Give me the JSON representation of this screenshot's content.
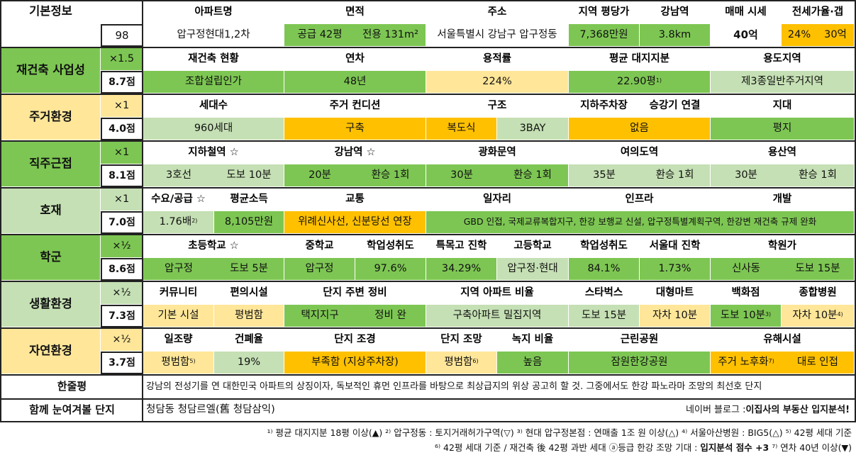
{
  "colors": {
    "green": "#7dc653",
    "light_green": "#c5e0b4",
    "orange": "#ffc000",
    "light_yellow": "#ffe699"
  },
  "basic": {
    "title": "기본정보",
    "total": "98",
    "h_apt": "아파트명",
    "apt": "압구정현대1,2차",
    "h_area": "면적",
    "area_supply": "공급 42평",
    "area_exclusive": "전용 131m²",
    "h_addr": "주소",
    "addr": "서울특별시 강남구 압구정동",
    "h_pyeong": "지역 평당가",
    "pyeong": "7,368만원",
    "h_gangnam": "강남역",
    "gangnam": "3.8km",
    "h_sale": "매매 시세",
    "sale": "40억",
    "h_jeonse": "전세가율·갭",
    "jeonse_rate": "24%",
    "gap": "30억"
  },
  "rebuild": {
    "title": "재건축 사업성",
    "mult": "×1.5",
    "score": "8.7점",
    "h1": "재건축 현황",
    "v1": "조합설립인가",
    "h2": "연차",
    "v2": "48년",
    "h3": "용적률",
    "v3": "224%",
    "h4": "평균 대지지분",
    "v4": "22.90평",
    "v4_sup": "1)",
    "h5": "용도지역",
    "v5": "제3종일반주거지역"
  },
  "living": {
    "title": "주거환경",
    "mult": "×1",
    "score": "4.0점",
    "h1": "세대수",
    "v1": "960세대",
    "h2": "주거 컨디션",
    "v2a": "구축",
    "v2b": "복도식",
    "h3": "구조",
    "v3": "3BAY",
    "h4": "지하주차장",
    "h5": "승강기 연결",
    "v4": "없음",
    "h6": "지대",
    "v6": "평지"
  },
  "commute": {
    "title": "직주근접",
    "mult": "×1",
    "score": "8.1점",
    "h1": "지하철역 ☆",
    "v1a": "3호선",
    "v1b": "도보 10분",
    "h2": "강남역 ☆",
    "v2a": "20분",
    "v2b": "환승 1회",
    "h3": "광화문역",
    "v3a": "30분",
    "v3b": "환승 1회",
    "h4": "여의도역",
    "v4a": "35분",
    "v4b": "환승 1회",
    "h5": "용산역",
    "v5a": "30분",
    "v5b": "환승 1회"
  },
  "hojae": {
    "title": "호재",
    "mult": "×1",
    "score": "7.0점",
    "h1": "수요/공급 ☆",
    "v1": "1.76배",
    "v1_sup": "2)",
    "h2": "평균소득",
    "v2": "8,105만원",
    "h3": "교통",
    "v3": "위례신사선, 신분당선 연장",
    "h4": "일자리",
    "h5": "인프라",
    "h6": "개발",
    "v456": "GBD 인접, 국제교류복합지구, 한강 보행교 신설, 압구정특별계획구역, 한강변 재건축 규제 완화"
  },
  "school": {
    "title": "학군",
    "mult": "×½",
    "score": "8.6점",
    "h1": "초등학교 ☆",
    "v1a": "압구정",
    "v1b": "도보 5분",
    "h2": "중학교",
    "v2": "압구정",
    "h3": "학업성취도",
    "v3": "97.6%",
    "h4": "특목고 진학",
    "v4": "34.29%",
    "h5": "고등학교",
    "v5": "압구정·현대",
    "h6": "학업성취도",
    "v6": "84.1%",
    "h7": "서울대 진학",
    "v7": "1.73%",
    "h8": "학원가",
    "v8a": "신사동",
    "v8b": "도보 15분"
  },
  "life": {
    "title": "생활환경",
    "mult": "×½",
    "score": "7.3점",
    "h1": "커뮤니티",
    "v1": "기본 시설",
    "h2": "편의시설",
    "v2": "평범함",
    "h3": "단지 주변 정비",
    "v3a": "택지지구",
    "v3b": "정비 완",
    "h4": "지역 아파트 비율",
    "v4": "구축아파트 밀집지역",
    "h5": "스타벅스",
    "v5": "도보 15분",
    "h6": "대형마트",
    "v6": "자차 10분",
    "h7": "백화점",
    "v7": "도보 10분",
    "v7_sup": "3)",
    "h8": "종합병원",
    "v8": "자차 10분",
    "v8_sup": "4)"
  },
  "nature": {
    "title": "자연환경",
    "mult": "×½",
    "score": "3.7점",
    "h1": "일조량",
    "v1": "평범함",
    "v1_sup": "5)",
    "h2": "건폐율",
    "v2": "19%",
    "h3": "단지 조경",
    "v3": "부족함 (지상주차장)",
    "h4": "단지 조망",
    "v4": "평범함",
    "v4_sup": "6)",
    "h5": "녹지 비율",
    "v5": "높음",
    "h6": "근린공원",
    "v6": "잠원한강공원",
    "h7": "유해시설",
    "v7a": "주거 노후화",
    "v7a_sup": "7)",
    "v7b": "대로 인접"
  },
  "summary": {
    "label": "한줄평",
    "text": "강남의 전성기를 연 대한민국 아파트의 상징이자, 독보적인 휴먼 인프라를 바탕으로 최상급지의 위상 공고히 할 것. 그중에서도 한강 파노라마 조망의 최선호 단지",
    "compare_label": "함께 눈여겨볼 단지",
    "compare": "청담동 청담르엘(舊 청담삼익)",
    "blog_prefix": "네이버 블로그 : ",
    "blog": "이집사의 부동산 입지분석!"
  },
  "footnotes": {
    "line1": "¹⁾ 평균 대지지분 18평 이상(▲) ²⁾ 압구정동 : 토지거래허가구역(▽) ³⁾ 현대 압구정본점 : 연매출 1조 원 이상(△) ⁴⁾ 서울아산병원 : BIG5(△) ⁵⁾ 42평 세대 기준",
    "line2a": "⁶⁾ 42평 세대 기준 / 재건축 後 42평 과반 세대 ⓐ등급 한강 조망 기대 : ",
    "line2b": "입지분석 점수 +3",
    "line2c": " ⁷⁾ 연차 40년 이상(▼)"
  }
}
